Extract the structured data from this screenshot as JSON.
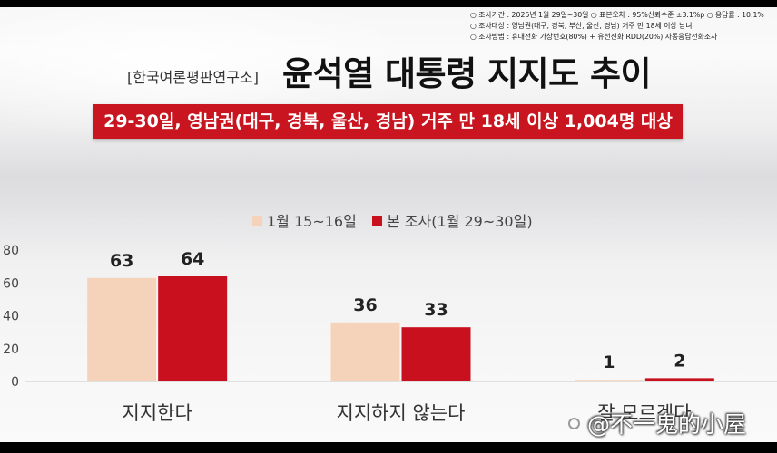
{
  "survey_info": {
    "lines": [
      "○ 조사기간 : 2025년 1월 29일~30일 ○ 표본오차 : 95%신뢰수준 ±3.1%p ○ 응답률 : 10.1%",
      "○ 조사대상 : 영남권(대구, 경북, 부산, 울산, 경남) 거주 만 18세 이상 남녀",
      "○ 조사방법 : 휴대전화 가상번호(80%) + 유선전화 RDD(20%) 자동응답전화조사"
    ]
  },
  "header": {
    "source": "[한국여론평판연구소]"
  },
  "colors": {
    "banner": "#c8151f",
    "text": "#222222"
  },
  "chart_data": {
    "type": "bar",
    "title": "윤석열 대통령 지지도 추이",
    "subtitle": "29-30일, 영남권(대구, 경북, 울산, 경남) 거주 만 18세 이상 1,004명 대상",
    "categories": [
      "지지한다",
      "지지하지 않는다",
      "잘 모르겠다"
    ],
    "series": [
      {
        "name": "1월 15~16일",
        "values": [
          63,
          36,
          1
        ],
        "color": "#f5d3bb"
      },
      {
        "name": "본 조사(1월 29~30일)",
        "values": [
          64,
          33,
          2
        ],
        "color": "#c8101e"
      }
    ],
    "yticks": [
      0,
      20,
      40,
      60,
      80
    ],
    "ylim": [
      0,
      80
    ],
    "grid": false,
    "legend": "top-center",
    "data_labels": true
  },
  "watermark": {
    "text": "@不一鬼的小屋",
    "icon": "toutiao-logo-icon"
  }
}
